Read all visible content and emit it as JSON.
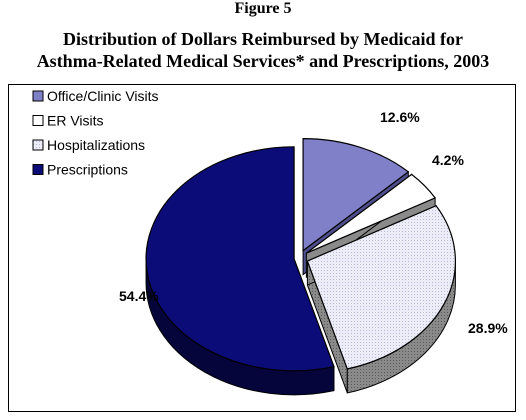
{
  "figure": {
    "label": "Figure 5",
    "title_line1": "Distribution of Dollars Reimbursed by Medicaid for",
    "title_line2": "Asthma-Related Medical Services* and Prescriptions, 2003"
  },
  "chart_data": {
    "type": "pie",
    "title": "Distribution of Dollars Reimbursed by Medicaid for Asthma-Related Medical Services* and Prescriptions, 2003",
    "legend_position": "top-left",
    "categories": [
      "Office/Clinic Visits",
      "ER Visits",
      "Hospitalizations",
      "Prescriptions"
    ],
    "values": [
      12.6,
      4.2,
      28.9,
      54.4
    ],
    "labels": [
      "12.6%",
      "4.2%",
      "28.9%",
      "54.4%"
    ],
    "colors": [
      "#8080c8",
      "#ffffff",
      "#ebebf8",
      "#0c0c78"
    ],
    "style": "3d-exploded"
  }
}
